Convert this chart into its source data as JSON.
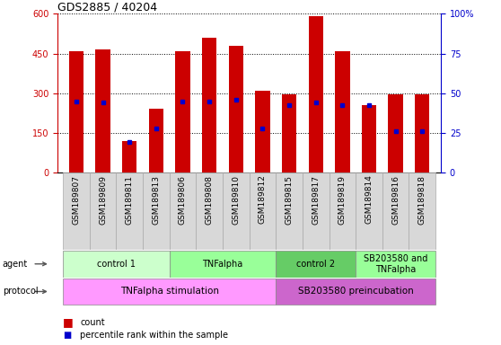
{
  "title": "GDS2885 / 40204",
  "samples": [
    "GSM189807",
    "GSM189809",
    "GSM189811",
    "GSM189813",
    "GSM189806",
    "GSM189808",
    "GSM189810",
    "GSM189812",
    "GSM189815",
    "GSM189817",
    "GSM189819",
    "GSM189814",
    "GSM189816",
    "GSM189818"
  ],
  "counts": [
    460,
    465,
    120,
    240,
    460,
    510,
    480,
    310,
    295,
    590,
    460,
    255,
    295,
    295
  ],
  "percentile_ranks_left": [
    270,
    265,
    115,
    165,
    270,
    270,
    275,
    165,
    255,
    265,
    255,
    255,
    155,
    155
  ],
  "ylim_left": [
    0,
    600
  ],
  "ylim_right": [
    0,
    100
  ],
  "yticks_left": [
    0,
    150,
    300,
    450,
    600
  ],
  "yticks_right": [
    0,
    25,
    50,
    75,
    100
  ],
  "agent_groups": [
    {
      "label": "control 1",
      "start": 0,
      "end": 4,
      "color": "#ccffcc"
    },
    {
      "label": "TNFalpha",
      "start": 4,
      "end": 8,
      "color": "#99ff99"
    },
    {
      "label": "control 2",
      "start": 8,
      "end": 11,
      "color": "#66cc66"
    },
    {
      "label": "SB203580 and\nTNFalpha",
      "start": 11,
      "end": 14,
      "color": "#99ff99"
    }
  ],
  "protocol_groups": [
    {
      "label": "TNFalpha stimulation",
      "start": 0,
      "end": 8,
      "color": "#ff99ff"
    },
    {
      "label": "SB203580 preincubation",
      "start": 8,
      "end": 14,
      "color": "#cc66cc"
    }
  ],
  "bar_color": "#cc0000",
  "dot_color": "#0000cc",
  "bar_width": 0.55,
  "legend_count_color": "#cc0000",
  "legend_dot_color": "#0000cc",
  "ylabel_left_color": "#cc0000",
  "ylabel_right_color": "#0000cc",
  "sample_box_color": "#d8d8d8",
  "grid_color": "#000000",
  "title_fontsize": 9,
  "tick_fontsize": 7,
  "label_fontsize": 7,
  "legend_fontsize": 8
}
